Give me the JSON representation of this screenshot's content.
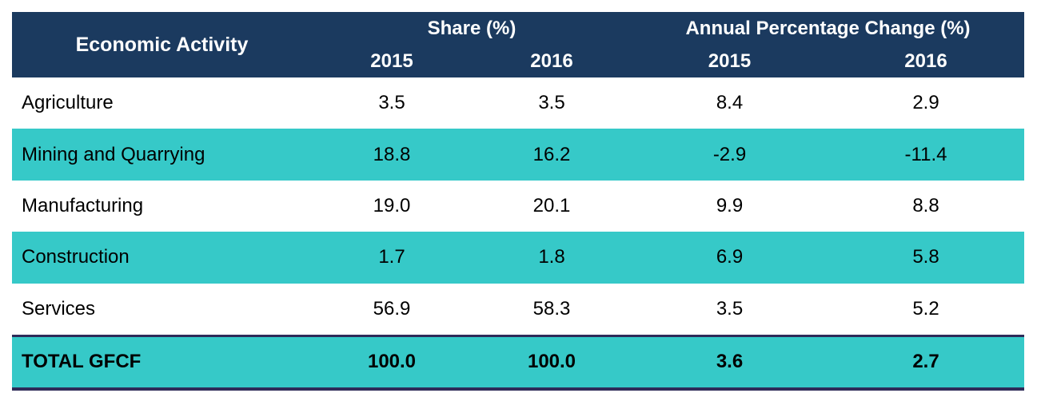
{
  "table": {
    "header": {
      "activity_label": "Economic Activity",
      "share_group_label": "Share (%)",
      "apc_group_label": "Annual Percentage Change (%)",
      "years": [
        "2015",
        "2016",
        "2015",
        "2016"
      ]
    },
    "rows": [
      {
        "activity": "Agriculture",
        "share_2015": "3.5",
        "share_2016": "3.5",
        "apc_2015": "8.4",
        "apc_2016": "2.9"
      },
      {
        "activity": "Mining and Quarrying",
        "share_2015": "18.8",
        "share_2016": "16.2",
        "apc_2015": "-2.9",
        "apc_2016": "-11.4"
      },
      {
        "activity": "Manufacturing",
        "share_2015": "19.0",
        "share_2016": "20.1",
        "apc_2015": "9.9",
        "apc_2016": "8.8"
      },
      {
        "activity": "Construction",
        "share_2015": "1.7",
        "share_2016": "1.8",
        "apc_2015": "6.9",
        "apc_2016": "5.8"
      },
      {
        "activity": "Services",
        "share_2015": "56.9",
        "share_2016": "58.3",
        "apc_2015": "3.5",
        "apc_2016": "5.2"
      }
    ],
    "total": {
      "activity": "TOTAL GFCF",
      "share_2015": "100.0",
      "share_2016": "100.0",
      "apc_2015": "3.6",
      "apc_2016": "2.7"
    },
    "colors": {
      "header_bg": "#1B3A5F",
      "header_text": "#FFFFFF",
      "stripe_bg": "#36C9C8",
      "total_border": "#2E2B58",
      "body_text": "#000000"
    }
  },
  "chart_data": {
    "type": "table",
    "title": "",
    "column_groups": [
      "Share (%)",
      "Annual Percentage Change (%)"
    ],
    "columns": [
      "Economic Activity",
      "Share (%) 2015",
      "Share (%) 2016",
      "Annual Percentage Change (%) 2015",
      "Annual Percentage Change (%) 2016"
    ],
    "rows": [
      [
        "Agriculture",
        3.5,
        3.5,
        8.4,
        2.9
      ],
      [
        "Mining and Quarrying",
        18.8,
        16.2,
        -2.9,
        -11.4
      ],
      [
        "Manufacturing",
        19.0,
        20.1,
        9.9,
        8.8
      ],
      [
        "Construction",
        1.7,
        1.8,
        6.9,
        5.8
      ],
      [
        "Services",
        56.9,
        58.3,
        3.5,
        5.2
      ],
      [
        "TOTAL GFCF",
        100.0,
        100.0,
        3.6,
        2.7
      ]
    ],
    "layout": {
      "striped_rows": true,
      "total_row_bold": true,
      "grid": false
    }
  }
}
